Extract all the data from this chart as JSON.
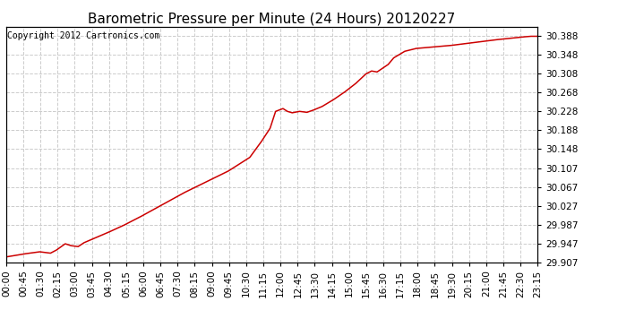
{
  "title": "Barometric Pressure per Minute (24 Hours) 20120227",
  "copyright_text": "Copyright 2012 Cartronics.com",
  "line_color": "#cc0000",
  "background_color": "#ffffff",
  "plot_bg_color": "#ffffff",
  "grid_color": "#cccccc",
  "ylim": [
    29.907,
    30.408
  ],
  "yticks": [
    29.907,
    29.947,
    29.987,
    30.027,
    30.067,
    30.107,
    30.148,
    30.188,
    30.228,
    30.268,
    30.308,
    30.348,
    30.388
  ],
  "xtick_labels": [
    "00:00",
    "00:45",
    "01:30",
    "02:15",
    "03:00",
    "03:45",
    "04:30",
    "05:15",
    "06:00",
    "06:45",
    "07:30",
    "08:15",
    "09:00",
    "09:45",
    "10:30",
    "11:15",
    "12:00",
    "12:45",
    "13:30",
    "14:15",
    "15:00",
    "15:45",
    "16:30",
    "17:15",
    "18:00",
    "18:45",
    "19:30",
    "20:15",
    "21:00",
    "21:45",
    "22:30",
    "23:15"
  ],
  "title_fontsize": 11,
  "tick_fontsize": 7.5,
  "copyright_fontsize": 7,
  "line_width": 1.1,
  "ctrl_x": [
    0,
    45,
    90,
    120,
    135,
    160,
    175,
    195,
    210,
    270,
    315,
    360,
    420,
    480,
    540,
    600,
    660,
    690,
    715,
    730,
    750,
    762,
    775,
    795,
    815,
    830,
    855,
    885,
    915,
    945,
    975,
    990,
    1005,
    1020,
    1035,
    1050,
    1080,
    1110,
    1140,
    1200,
    1260,
    1320,
    1380,
    1420,
    1440
  ],
  "ctrl_y": [
    29.918,
    29.924,
    29.929,
    29.926,
    29.932,
    29.946,
    29.942,
    29.94,
    29.948,
    29.968,
    29.984,
    30.002,
    30.028,
    30.054,
    30.077,
    30.1,
    30.13,
    30.162,
    30.192,
    30.228,
    30.234,
    30.228,
    30.225,
    30.228,
    30.226,
    30.23,
    30.238,
    30.252,
    30.268,
    30.286,
    30.308,
    30.314,
    30.312,
    30.32,
    30.328,
    30.342,
    30.356,
    30.362,
    30.364,
    30.368,
    30.374,
    30.38,
    30.385,
    30.388,
    30.388
  ]
}
